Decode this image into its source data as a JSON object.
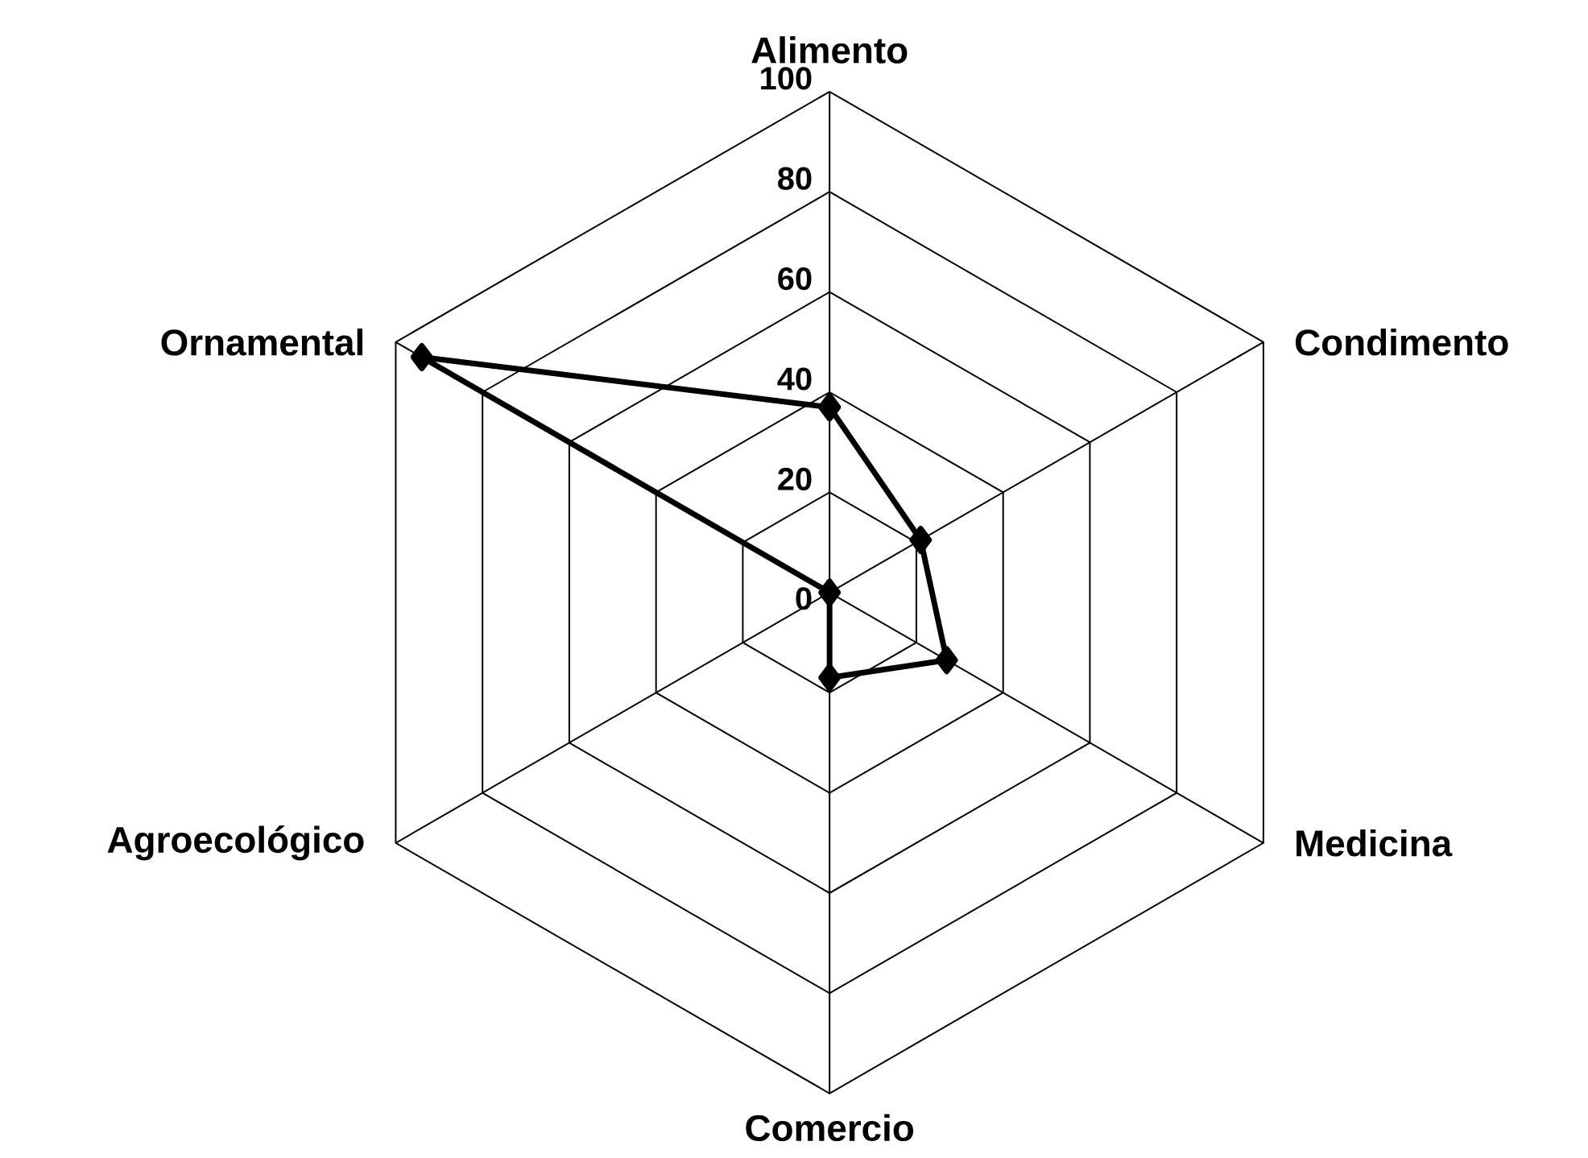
{
  "chart_data": {
    "type": "radar",
    "categories": [
      "Alimento",
      "Condimento",
      "Medicina",
      "Comercio",
      "Agroecológico",
      "Ornamental"
    ],
    "series": [
      {
        "color": "#000000",
        "values": [
          37,
          21,
          27,
          17,
          0,
          94
        ]
      }
    ],
    "ylim": [
      0,
      100
    ],
    "yticks": [
      0,
      20,
      40,
      60,
      80,
      100
    ],
    "grid": true,
    "marker": "diamond"
  }
}
